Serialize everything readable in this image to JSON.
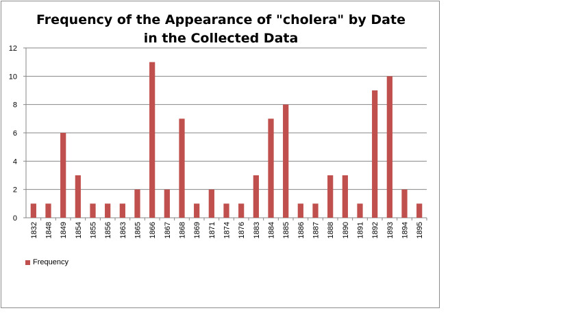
{
  "chart_data": {
    "type": "bar",
    "title_lines": [
      "Frequency of the Appearance of \"cholera\" by Date",
      "in the Collected Data"
    ],
    "categories": [
      "1832",
      "1848",
      "1849",
      "1854",
      "1855",
      "1856",
      "1863",
      "1865",
      "1866",
      "1867",
      "1868",
      "1869",
      "1871",
      "1874",
      "1876",
      "1883",
      "1884",
      "1885",
      "1886",
      "1887",
      "1888",
      "1890",
      "1891",
      "1892",
      "1893",
      "1894",
      "1895"
    ],
    "series": [
      {
        "name": "Frequency",
        "color": "#c0504d",
        "values": [
          1,
          1,
          6,
          3,
          1,
          1,
          1,
          2,
          11,
          2,
          7,
          1,
          2,
          1,
          1,
          3,
          7,
          8,
          1,
          1,
          3,
          3,
          1,
          9,
          10,
          2,
          1
        ]
      }
    ],
    "xlabel": "",
    "ylabel": "",
    "ylim": [
      0,
      12
    ],
    "yticks": [
      0,
      2,
      4,
      6,
      8,
      10,
      12
    ],
    "grid": true,
    "legend_position": "bottom-left"
  }
}
